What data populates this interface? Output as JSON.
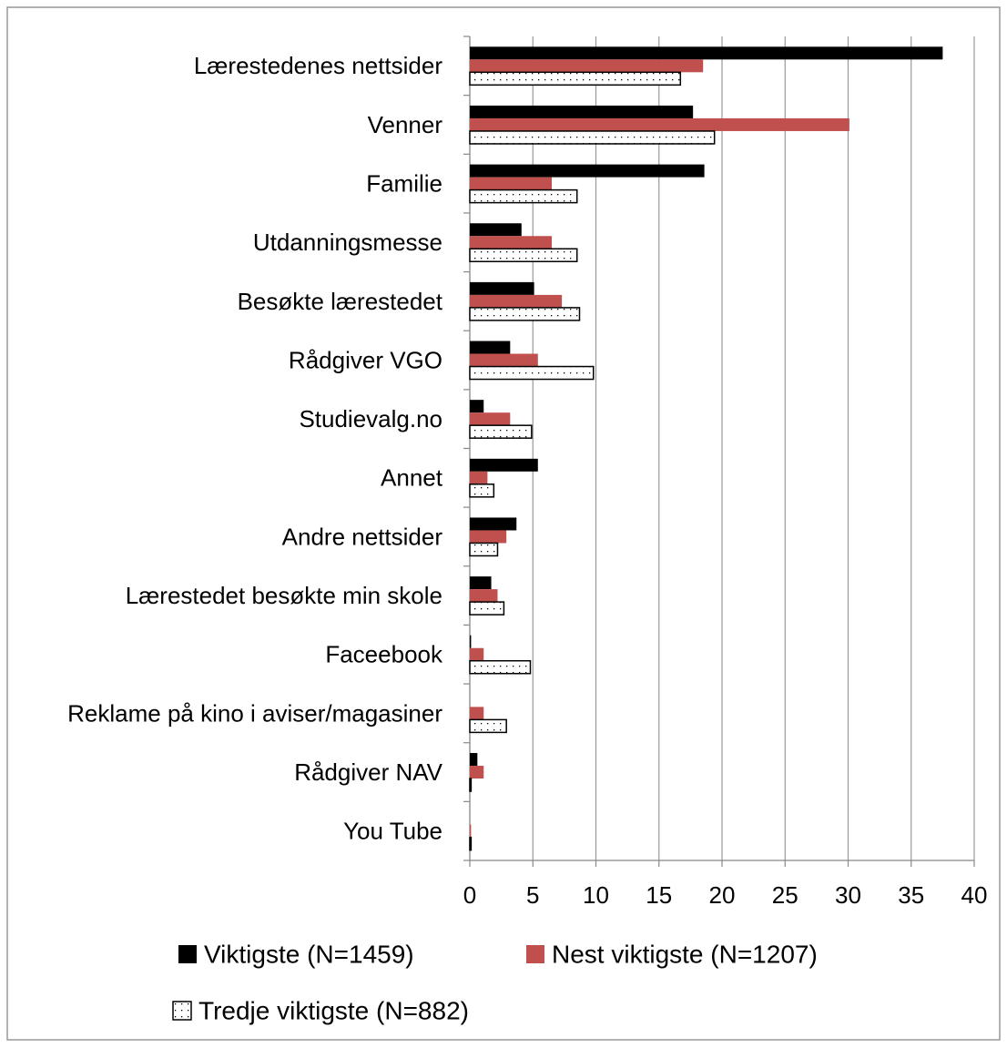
{
  "chart_data": {
    "type": "hbar",
    "categories": [
      "Lærestedenes nettsider",
      "Venner",
      "Familie",
      "Utdanningsmesse",
      "Besøkte lærestedet",
      "Rådgiver VGO",
      "Studievalg.no",
      "Annet",
      "Andre nettsider",
      "Lærestedet besøkte min skole",
      "Faceebook",
      "Reklame på kino i aviser/magasiner",
      "Rådgiver NAV",
      "You Tube"
    ],
    "series": [
      {
        "name": "Viktigste (N=1459)",
        "color": "#000000",
        "values": [
          37.5,
          17.7,
          18.6,
          4.1,
          5.1,
          3.2,
          1.1,
          5.4,
          3.7,
          1.7,
          0.1,
          0,
          0.6,
          0
        ]
      },
      {
        "name": "Nest viktigste (N=1207)",
        "color": "#c0504d",
        "values": [
          18.5,
          30.1,
          6.5,
          6.5,
          7.3,
          5.4,
          3.2,
          1.4,
          2.9,
          2.2,
          1.1,
          1.1,
          1.1,
          0.1
        ]
      },
      {
        "name": "Tredje viktigste (N=882)",
        "color": "#ffffff",
        "pattern": "dots",
        "values": [
          16.7,
          19.4,
          8.5,
          8.5,
          8.7,
          9.8,
          4.9,
          1.9,
          2.2,
          2.7,
          4.8,
          2.9,
          0.1,
          0.1
        ]
      }
    ],
    "xlim": [
      0,
      40
    ],
    "xticks": [
      0,
      5,
      10,
      15,
      20,
      25,
      30,
      35,
      40
    ],
    "grid": true
  }
}
